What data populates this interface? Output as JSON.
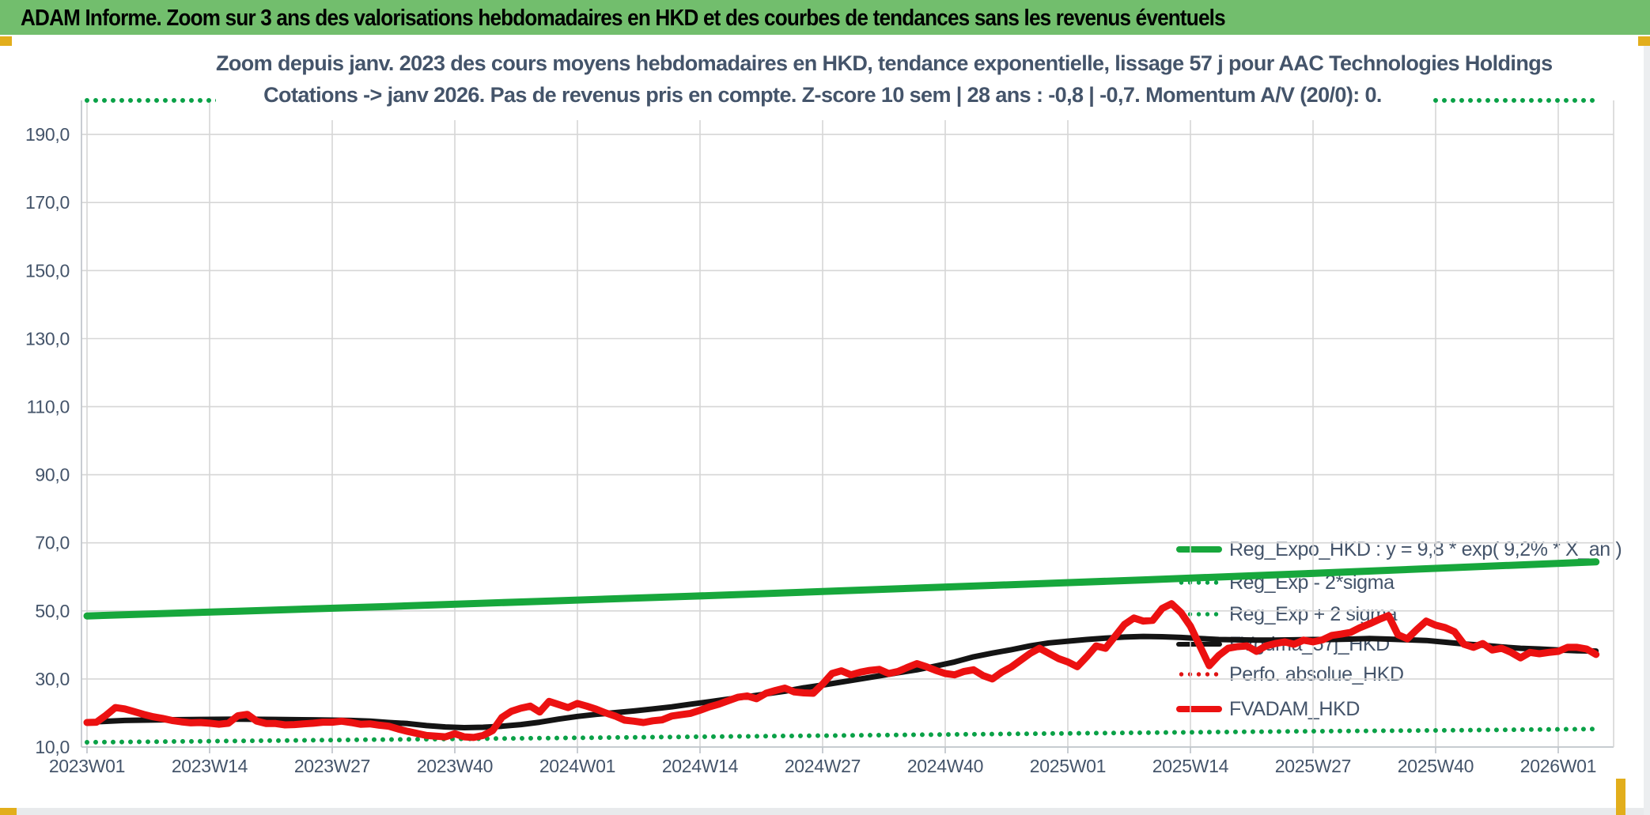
{
  "banner": {
    "text": "ADAM Informe. Zoom sur 3 ans des valorisations hebdomadaires en HKD et des courbes de tendances sans les revenus éventuels"
  },
  "chart": {
    "title_line1": "Zoom depuis janv. 2023 des cours moyens hebdomadaires en HKD, tendance exponentielle, lissage 57 j pour AAC Technologies Holdings",
    "title_line2": "Cotations -> janv 2026. Pas de revenus pris en compte. Z-score 10 sem | 28 ans : -0,8 | -0,7. Momentum A/V (20/0): 0."
  },
  "colors": {
    "green": "#17a73c",
    "green_dot": "#0aa147",
    "red": "#ec1111",
    "red_dot": "#e01414",
    "black": "#141414",
    "text": "#44546A",
    "grid": "#d6d6d6",
    "axis": "#c2c7cd",
    "banner_bg": "#72be6d",
    "accent_yellow": "#e2ae1c"
  },
  "chart_data": {
    "type": "line",
    "title": "Zoom depuis janv. 2023 des cours moyens hebdomadaires en HKD, tendance exponentielle, lissage 57 j pour AAC Technologies Holdings Cotations -> janv 2026. Pas de revenus pris en compte. Z-score 10 sem | 28 ans : -0,8 | -0,7. Momentum A/V (20/0): 0.",
    "x_axis": {
      "labels": [
        "2023W01",
        "2023W14",
        "2023W27",
        "2023W40",
        "2024W01",
        "2024W14",
        "2024W27",
        "2024W40",
        "2025W01",
        "2025W14",
        "2025W27",
        "2025W40",
        "2026W01"
      ],
      "tick_weeks": [
        0,
        13,
        26,
        39,
        52,
        65,
        78,
        91,
        104,
        117,
        130,
        143,
        156
      ]
    },
    "y_axis": {
      "min": 10,
      "max": 200,
      "step": 20,
      "tick_values": [
        10,
        30,
        50,
        70,
        90,
        110,
        130,
        150,
        170,
        190
      ],
      "tick_labels": [
        "10,0",
        "30,0",
        "50,0",
        "70,0",
        "90,0",
        "110,0",
        "130,0",
        "150,0",
        "170,0",
        "190,0"
      ],
      "grid": true
    },
    "legend_position": "inside-right",
    "legend": [
      {
        "label": "Reg_Expo_HKD : y = 9,8 * exp( 9,2% *  X_an )",
        "color": "#17a73c",
        "style": "solid",
        "thickness": 8
      },
      {
        "label": "Reg_Exp - 2*sigma",
        "color": "#0aa147",
        "style": "dot",
        "thickness": 6
      },
      {
        "label": "Reg_Exp + 2 sigma",
        "color": "#0aa147",
        "style": "dot",
        "thickness": 6
      },
      {
        "label": "FVgdma_57j_HKD",
        "color": "#141414",
        "style": "solid",
        "thickness": 6
      },
      {
        "label": "Perfo. absolue_HKD",
        "color": "#e01414",
        "style": "dot",
        "thickness": 6
      },
      {
        "label": "FVADAM_HKD",
        "color": "#ec1111",
        "style": "solid",
        "thickness": 8
      }
    ],
    "series": [
      {
        "name": "Reg_Exp + 2 sigma",
        "color": "#0aa147",
        "style": "dot",
        "width": 6,
        "note": "clipped at axis max 200",
        "points": [
          [
            0,
            200
          ],
          [
            160.5,
            200
          ]
        ]
      },
      {
        "name": "Reg_Exp - 2*sigma",
        "color": "#0aa147",
        "style": "dot",
        "width": 6,
        "points": [
          [
            0,
            11.4
          ],
          [
            16,
            11.8
          ],
          [
            32,
            12.2
          ],
          [
            48,
            12.6
          ],
          [
            64,
            13.0
          ],
          [
            80,
            13.4
          ],
          [
            96,
            13.8
          ],
          [
            112,
            14.2
          ],
          [
            128,
            14.6
          ],
          [
            144,
            14.9
          ],
          [
            160,
            15.3
          ]
        ]
      },
      {
        "name": "Reg_Expo_HKD",
        "color": "#17a73c",
        "style": "solid",
        "width": 9,
        "points": [
          [
            0,
            48.5
          ],
          [
            16,
            49.9
          ],
          [
            32,
            51.3
          ],
          [
            48,
            52.8
          ],
          [
            64,
            54.3
          ],
          [
            80,
            55.9
          ],
          [
            96,
            57.5
          ],
          [
            112,
            59.1
          ],
          [
            128,
            60.8
          ],
          [
            144,
            62.6
          ],
          [
            160,
            64.4
          ]
        ]
      },
      {
        "name": "Perfo. absolue_HKD",
        "color": "#e01414",
        "style": "dot",
        "width": 6,
        "note": "not visibly distinct in plot (hidden behind FVADAM_HKD)",
        "points": []
      },
      {
        "name": "FVgdma_57j_HKD",
        "color": "#141414",
        "style": "solid",
        "width": 7,
        "points": [
          [
            0,
            17.3
          ],
          [
            4,
            17.8
          ],
          [
            8,
            18.0
          ],
          [
            12,
            18.1
          ],
          [
            16,
            18.2
          ],
          [
            20,
            18.1
          ],
          [
            24,
            18.0
          ],
          [
            28,
            17.8
          ],
          [
            30,
            17.6
          ],
          [
            32,
            17.2
          ],
          [
            34,
            16.9
          ],
          [
            36,
            16.3
          ],
          [
            38,
            15.9
          ],
          [
            40,
            15.7
          ],
          [
            42,
            15.8
          ],
          [
            44,
            16.1
          ],
          [
            46,
            16.6
          ],
          [
            48,
            17.3
          ],
          [
            50,
            18.2
          ],
          [
            52,
            19.0
          ],
          [
            54,
            19.6
          ],
          [
            56,
            20.1
          ],
          [
            58,
            20.6
          ],
          [
            60,
            21.2
          ],
          [
            62,
            21.8
          ],
          [
            64,
            22.6
          ],
          [
            66,
            23.3
          ],
          [
            68,
            24.1
          ],
          [
            70,
            24.8
          ],
          [
            72,
            25.6
          ],
          [
            74,
            26.4
          ],
          [
            76,
            27.4
          ],
          [
            78,
            28.2
          ],
          [
            80,
            29.1
          ],
          [
            82,
            30.0
          ],
          [
            84,
            30.9
          ],
          [
            86,
            31.8
          ],
          [
            88,
            32.7
          ],
          [
            90,
            33.8
          ],
          [
            92,
            35.0
          ],
          [
            94,
            36.5
          ],
          [
            96,
            37.6
          ],
          [
            98,
            38.6
          ],
          [
            100,
            39.7
          ],
          [
            102,
            40.6
          ],
          [
            104,
            41.1
          ],
          [
            106,
            41.6
          ],
          [
            108,
            42.0
          ],
          [
            110,
            42.3
          ],
          [
            112,
            42.5
          ],
          [
            114,
            42.4
          ],
          [
            116,
            42.2
          ],
          [
            118,
            41.9
          ],
          [
            120,
            41.6
          ],
          [
            122,
            41.5
          ],
          [
            124,
            41.4
          ],
          [
            126,
            41.4
          ],
          [
            128,
            41.5
          ],
          [
            130,
            41.6
          ],
          [
            132,
            41.6
          ],
          [
            134,
            41.7
          ],
          [
            136,
            41.9
          ],
          [
            138,
            41.7
          ],
          [
            140,
            41.5
          ],
          [
            142,
            41.3
          ],
          [
            144,
            40.8
          ],
          [
            146,
            40.3
          ],
          [
            148,
            39.9
          ],
          [
            150,
            39.4
          ],
          [
            152,
            39.0
          ],
          [
            154,
            38.8
          ],
          [
            156,
            38.5
          ],
          [
            158,
            38.3
          ],
          [
            160,
            38.2
          ]
        ]
      },
      {
        "name": "FVADAM_HKD",
        "color": "#ec1111",
        "style": "solid",
        "width": 9,
        "points": [
          [
            0,
            17.2
          ],
          [
            1,
            17.3
          ],
          [
            2,
            19.3
          ],
          [
            3,
            21.6
          ],
          [
            4,
            21.2
          ],
          [
            5,
            20.4
          ],
          [
            6,
            19.6
          ],
          [
            7,
            18.9
          ],
          [
            8,
            18.4
          ],
          [
            9,
            17.8
          ],
          [
            10,
            17.4
          ],
          [
            11,
            17.1
          ],
          [
            12,
            17.2
          ],
          [
            13,
            17.0
          ],
          [
            14,
            16.7
          ],
          [
            15,
            17.0
          ],
          [
            16,
            19.2
          ],
          [
            17,
            19.6
          ],
          [
            18,
            17.6
          ],
          [
            19,
            16.9
          ],
          [
            20,
            16.9
          ],
          [
            21,
            16.5
          ],
          [
            22,
            16.6
          ],
          [
            23,
            16.8
          ],
          [
            24,
            17.0
          ],
          [
            25,
            17.3
          ],
          [
            26,
            17.3
          ],
          [
            27,
            17.6
          ],
          [
            28,
            17.2
          ],
          [
            29,
            16.7
          ],
          [
            30,
            16.8
          ],
          [
            31,
            16.4
          ],
          [
            32,
            16.1
          ],
          [
            33,
            15.3
          ],
          [
            34,
            14.6
          ],
          [
            35,
            14.0
          ],
          [
            36,
            13.4
          ],
          [
            37,
            13.2
          ],
          [
            38,
            13.0
          ],
          [
            39,
            13.9
          ],
          [
            40,
            13.0
          ],
          [
            41,
            12.8
          ],
          [
            42,
            13.4
          ],
          [
            43,
            14.8
          ],
          [
            44,
            18.7
          ],
          [
            45,
            20.5
          ],
          [
            46,
            21.4
          ],
          [
            47,
            22.0
          ],
          [
            48,
            20.3
          ],
          [
            49,
            23.4
          ],
          [
            50,
            22.5
          ],
          [
            51,
            21.6
          ],
          [
            52,
            22.8
          ],
          [
            53,
            22.0
          ],
          [
            54,
            21.1
          ],
          [
            55,
            20.0
          ],
          [
            56,
            19.1
          ],
          [
            57,
            17.9
          ],
          [
            58,
            17.6
          ],
          [
            59,
            17.2
          ],
          [
            60,
            17.7
          ],
          [
            61,
            18.0
          ],
          [
            62,
            19.1
          ],
          [
            63,
            19.5
          ],
          [
            64,
            19.9
          ],
          [
            65,
            20.8
          ],
          [
            66,
            21.8
          ],
          [
            67,
            22.6
          ],
          [
            68,
            23.6
          ],
          [
            69,
            24.6
          ],
          [
            70,
            25.0
          ],
          [
            71,
            24.2
          ],
          [
            72,
            25.8
          ],
          [
            73,
            26.6
          ],
          [
            74,
            27.3
          ],
          [
            75,
            26.2
          ],
          [
            76,
            25.9
          ],
          [
            77,
            25.8
          ],
          [
            78,
            28.5
          ],
          [
            79,
            31.6
          ],
          [
            80,
            32.4
          ],
          [
            81,
            31.2
          ],
          [
            82,
            32.0
          ],
          [
            83,
            32.5
          ],
          [
            84,
            32.8
          ],
          [
            85,
            31.6
          ],
          [
            86,
            32.2
          ],
          [
            87,
            33.4
          ],
          [
            88,
            34.5
          ],
          [
            89,
            33.6
          ],
          [
            90,
            32.5
          ],
          [
            91,
            31.6
          ],
          [
            92,
            31.2
          ],
          [
            93,
            32.2
          ],
          [
            94,
            32.7
          ],
          [
            95,
            31.0
          ],
          [
            96,
            30.0
          ],
          [
            97,
            32.0
          ],
          [
            98,
            33.5
          ],
          [
            99,
            35.5
          ],
          [
            100,
            37.5
          ],
          [
            101,
            39.0
          ],
          [
            102,
            37.5
          ],
          [
            103,
            36.0
          ],
          [
            104,
            35.0
          ],
          [
            105,
            33.6
          ],
          [
            106,
            36.5
          ],
          [
            107,
            39.7
          ],
          [
            108,
            39.0
          ],
          [
            109,
            42.5
          ],
          [
            110,
            46.0
          ],
          [
            111,
            47.9
          ],
          [
            112,
            47.0
          ],
          [
            113,
            47.2
          ],
          [
            114,
            50.7
          ],
          [
            115,
            52.1
          ],
          [
            116,
            49.5
          ],
          [
            117,
            45.5
          ],
          [
            118,
            39.7
          ],
          [
            119,
            33.9
          ],
          [
            120,
            36.9
          ],
          [
            121,
            39.0
          ],
          [
            122,
            39.5
          ],
          [
            123,
            39.7
          ],
          [
            124,
            38.1
          ],
          [
            125,
            39.7
          ],
          [
            126,
            40.4
          ],
          [
            127,
            40.9
          ],
          [
            128,
            40.2
          ],
          [
            129,
            41.4
          ],
          [
            130,
            40.9
          ],
          [
            131,
            41.5
          ],
          [
            132,
            42.8
          ],
          [
            133,
            43.2
          ],
          [
            134,
            43.7
          ],
          [
            135,
            45.1
          ],
          [
            136,
            46.2
          ],
          [
            137,
            47.5
          ],
          [
            138,
            48.6
          ],
          [
            139,
            43.0
          ],
          [
            140,
            41.8
          ],
          [
            141,
            44.5
          ],
          [
            142,
            47.0
          ],
          [
            143,
            45.8
          ],
          [
            144,
            45.1
          ],
          [
            145,
            43.9
          ],
          [
            146,
            40.2
          ],
          [
            147,
            39.3
          ],
          [
            148,
            40.4
          ],
          [
            149,
            38.5
          ],
          [
            150,
            39.0
          ],
          [
            151,
            37.8
          ],
          [
            152,
            36.2
          ],
          [
            153,
            37.8
          ],
          [
            154,
            37.4
          ],
          [
            155,
            37.8
          ],
          [
            156,
            38.1
          ],
          [
            157,
            39.3
          ],
          [
            158,
            39.3
          ],
          [
            159,
            38.8
          ],
          [
            160,
            37.2
          ]
        ]
      }
    ]
  }
}
